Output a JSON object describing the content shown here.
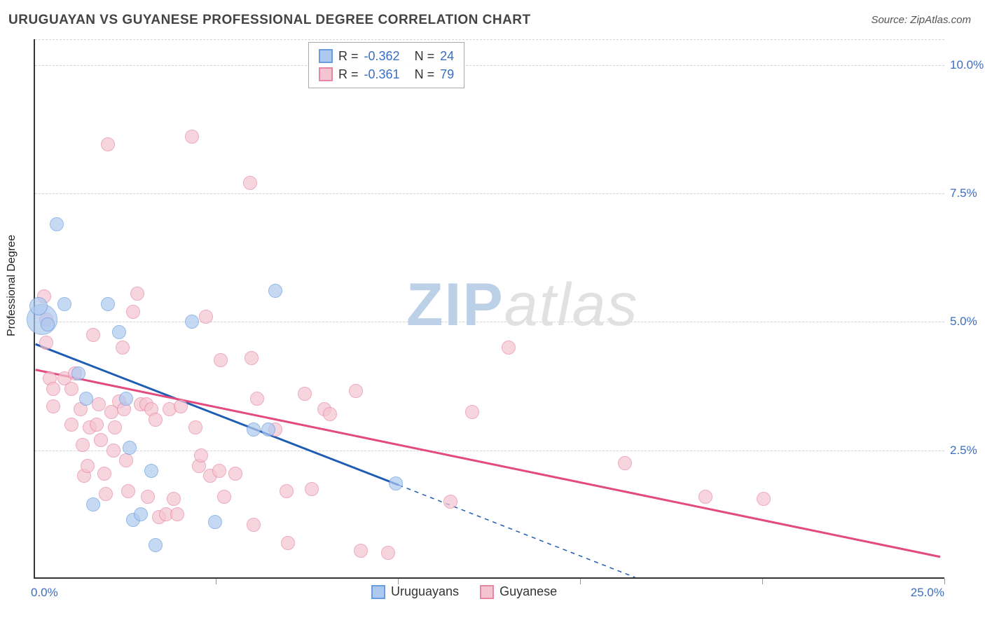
{
  "title": "URUGUAYAN VS GUYANESE PROFESSIONAL DEGREE CORRELATION CHART",
  "source_label": "Source: ZipAtlas.com",
  "y_axis_label": "Professional Degree",
  "watermark": {
    "left": "ZIP",
    "right": "atlas"
  },
  "plot": {
    "type": "scatter",
    "x_domain": [
      0,
      25
    ],
    "y_domain": [
      0,
      10.5
    ],
    "background_color": "#ffffff",
    "grid_color": "#d4d4d4",
    "marker_radius": 10,
    "marker_radius_large": 22,
    "marker_border_width": 1.5,
    "marker_fill_opacity": 0.35,
    "y_gridlines": [
      2.5,
      5.0,
      7.5,
      10.0
    ],
    "y_tick_labels": [
      "2.5%",
      "5.0%",
      "7.5%",
      "10.0%"
    ],
    "x_tick_positions": [
      5,
      10,
      15,
      20,
      25
    ],
    "x_axis_labels": {
      "left": "0.0%",
      "right": "25.0%"
    }
  },
  "series": [
    {
      "id": "uruguayans",
      "label": "Uruguayans",
      "fill": "#aec9ef",
      "stroke": "#6a9de0",
      "r_value": "-0.362",
      "n_value": "24",
      "trend": {
        "solid": {
          "x1": 0.0,
          "y1": 4.55,
          "x2": 10.0,
          "y2": 1.8
        },
        "dashed": {
          "x1": 10.0,
          "y1": 1.8,
          "x2": 16.5,
          "y2": 0.0
        },
        "solid_color": "#1f5cb3",
        "solid_width": 3,
        "dash_pattern": "6,6",
        "dash_width": 1.5
      },
      "points": [
        {
          "x": 0.2,
          "y": 5.05,
          "large": true
        },
        {
          "x": 0.1,
          "y": 5.3,
          "rfac": 1.3
        },
        {
          "x": 0.35,
          "y": 4.95
        },
        {
          "x": 0.6,
          "y": 6.9
        },
        {
          "x": 0.8,
          "y": 5.35
        },
        {
          "x": 1.2,
          "y": 4.0
        },
        {
          "x": 1.4,
          "y": 3.5
        },
        {
          "x": 1.6,
          "y": 1.45
        },
        {
          "x": 2.0,
          "y": 5.35
        },
        {
          "x": 2.3,
          "y": 4.8
        },
        {
          "x": 2.5,
          "y": 3.5
        },
        {
          "x": 2.6,
          "y": 2.55
        },
        {
          "x": 2.7,
          "y": 1.15
        },
        {
          "x": 2.9,
          "y": 1.25
        },
        {
          "x": 3.2,
          "y": 2.1
        },
        {
          "x": 3.3,
          "y": 0.65
        },
        {
          "x": 4.3,
          "y": 5.0
        },
        {
          "x": 4.95,
          "y": 1.1
        },
        {
          "x": 6.0,
          "y": 2.9
        },
        {
          "x": 6.4,
          "y": 2.9
        },
        {
          "x": 6.6,
          "y": 5.6
        },
        {
          "x": 9.9,
          "y": 1.85
        }
      ]
    },
    {
      "id": "guyanese",
      "label": "Guyanese",
      "fill": "#f5c4d2",
      "stroke": "#e688a3",
      "r_value": "-0.361",
      "n_value": "79",
      "trend": {
        "solid": {
          "x1": 0.0,
          "y1": 4.05,
          "x2": 24.9,
          "y2": 0.4
        },
        "solid_color": "#e24a80",
        "solid_width": 3
      },
      "points": [
        {
          "x": 0.25,
          "y": 5.5
        },
        {
          "x": 0.3,
          "y": 5.05
        },
        {
          "x": 0.3,
          "y": 4.6
        },
        {
          "x": 0.4,
          "y": 3.9
        },
        {
          "x": 0.5,
          "y": 3.7
        },
        {
          "x": 0.5,
          "y": 3.35
        },
        {
          "x": 0.8,
          "y": 3.9
        },
        {
          "x": 1.0,
          "y": 3.7
        },
        {
          "x": 1.0,
          "y": 3.0
        },
        {
          "x": 1.1,
          "y": 4.0
        },
        {
          "x": 1.25,
          "y": 3.3
        },
        {
          "x": 1.3,
          "y": 2.6
        },
        {
          "x": 1.35,
          "y": 2.0
        },
        {
          "x": 1.45,
          "y": 2.2
        },
        {
          "x": 1.5,
          "y": 2.95
        },
        {
          "x": 1.6,
          "y": 4.75
        },
        {
          "x": 1.7,
          "y": 3.0
        },
        {
          "x": 1.75,
          "y": 3.4
        },
        {
          "x": 1.8,
          "y": 2.7
        },
        {
          "x": 1.9,
          "y": 2.05
        },
        {
          "x": 1.95,
          "y": 1.65
        },
        {
          "x": 2.0,
          "y": 8.45
        },
        {
          "x": 2.1,
          "y": 3.25
        },
        {
          "x": 2.15,
          "y": 2.5
        },
        {
          "x": 2.2,
          "y": 2.95
        },
        {
          "x": 2.3,
          "y": 3.45
        },
        {
          "x": 2.4,
          "y": 4.5
        },
        {
          "x": 2.45,
          "y": 3.3
        },
        {
          "x": 2.5,
          "y": 2.3
        },
        {
          "x": 2.55,
          "y": 1.7
        },
        {
          "x": 2.7,
          "y": 5.2
        },
        {
          "x": 2.8,
          "y": 5.55
        },
        {
          "x": 2.9,
          "y": 3.4
        },
        {
          "x": 3.05,
          "y": 3.4
        },
        {
          "x": 3.1,
          "y": 1.6
        },
        {
          "x": 3.2,
          "y": 3.3
        },
        {
          "x": 3.3,
          "y": 3.1
        },
        {
          "x": 3.4,
          "y": 1.2
        },
        {
          "x": 3.6,
          "y": 1.25
        },
        {
          "x": 3.7,
          "y": 3.3
        },
        {
          "x": 3.8,
          "y": 1.55
        },
        {
          "x": 3.9,
          "y": 1.25
        },
        {
          "x": 4.0,
          "y": 3.35
        },
        {
          "x": 4.3,
          "y": 8.6
        },
        {
          "x": 4.4,
          "y": 2.95
        },
        {
          "x": 4.5,
          "y": 2.2
        },
        {
          "x": 4.55,
          "y": 2.4
        },
        {
          "x": 4.7,
          "y": 5.1
        },
        {
          "x": 4.8,
          "y": 2.0
        },
        {
          "x": 5.05,
          "y": 2.1
        },
        {
          "x": 5.1,
          "y": 4.25
        },
        {
          "x": 5.2,
          "y": 1.6
        },
        {
          "x": 5.5,
          "y": 2.05
        },
        {
          "x": 5.9,
          "y": 7.7
        },
        {
          "x": 5.95,
          "y": 4.3
        },
        {
          "x": 6.0,
          "y": 1.05
        },
        {
          "x": 6.1,
          "y": 3.5
        },
        {
          "x": 6.6,
          "y": 2.9
        },
        {
          "x": 6.9,
          "y": 1.7
        },
        {
          "x": 6.95,
          "y": 0.7
        },
        {
          "x": 7.4,
          "y": 3.6
        },
        {
          "x": 7.6,
          "y": 1.75
        },
        {
          "x": 7.95,
          "y": 3.3
        },
        {
          "x": 8.1,
          "y": 3.2
        },
        {
          "x": 8.8,
          "y": 3.65
        },
        {
          "x": 8.95,
          "y": 0.55
        },
        {
          "x": 9.7,
          "y": 0.5
        },
        {
          "x": 11.4,
          "y": 1.5
        },
        {
          "x": 12.0,
          "y": 3.25
        },
        {
          "x": 13.0,
          "y": 4.5
        },
        {
          "x": 16.2,
          "y": 2.25
        },
        {
          "x": 18.4,
          "y": 1.6
        },
        {
          "x": 20.0,
          "y": 1.55
        }
      ]
    }
  ],
  "legend_top": {
    "r_label": "R =",
    "n_label": "N ="
  },
  "legend_bottom_labels": [
    "Uruguayans",
    "Guyanese"
  ]
}
